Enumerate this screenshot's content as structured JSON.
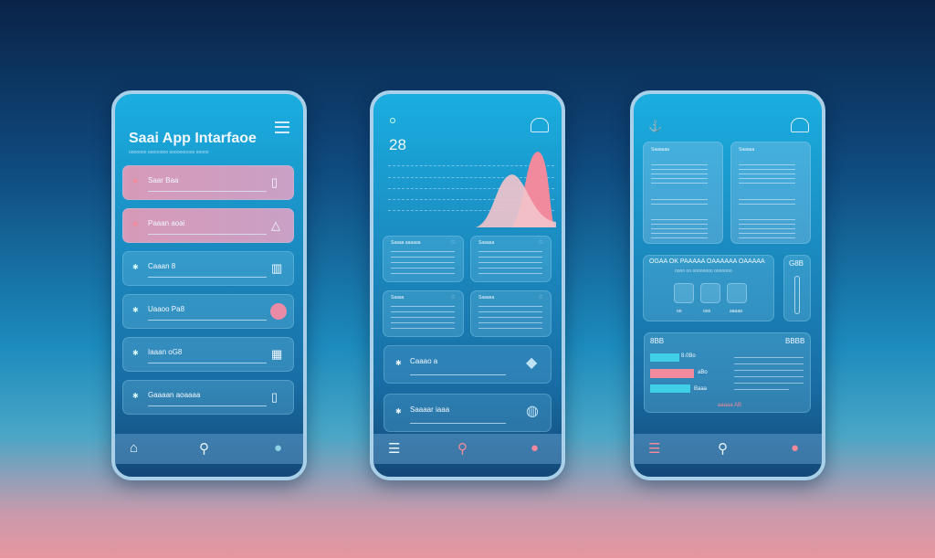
{
  "phone1": {
    "title": "Saai App Intarfaoe",
    "subtitle": "ooooooo oooooooo oooooooooo ooooo",
    "items": [
      {
        "label": "Saar Baa",
        "icon": "document-icon",
        "pink": true
      },
      {
        "label": "Paaan aoai",
        "icon": "triangle-icon",
        "pink": true
      },
      {
        "label": "Caaan 8",
        "icon": "chart-icon"
      },
      {
        "label": "Uaaoo Pa8",
        "icon": "circle-icon"
      },
      {
        "label": "Iaaan oG8",
        "icon": "calendar-icon"
      },
      {
        "label": "Gaaaan aoaaaa",
        "icon": "phone-icon"
      }
    ],
    "nav": [
      "gallery-icon",
      "search-icon",
      "avatar-icon"
    ]
  },
  "phone2": {
    "value": "28",
    "cards": [
      "Saaaa aaaaaa",
      "Saaaaa",
      "Saaaa",
      "Saaaaa"
    ],
    "items": [
      {
        "label": "Caaao a"
      },
      {
        "label": "Saaaar iaaa"
      }
    ],
    "nav": [
      "menu-icon",
      "search-icon",
      "avatar-icon"
    ]
  },
  "phone3": {
    "cards": [
      "Saaaaaa",
      "Saaaaa"
    ],
    "panel_title": "OGAA OK PAAAAA OAAAAAA OAAAAA",
    "panel_sub": "oooo oo oooooooo ooooooo",
    "tiles": [
      "oo",
      "ooo",
      "aaaaa"
    ],
    "side_title": "G8B",
    "chart_title": "8BB",
    "chart_badge": "BBBB",
    "bar_labels": [
      "8.0Bo",
      "aBo",
      "Baaa"
    ],
    "footer_link": "aaaaa AB",
    "nav": [
      "menu-icon",
      "search-icon",
      "avatar-icon"
    ]
  },
  "colors": {
    "accent_pink": "#f08a9c",
    "cyan": "#3fd0e8"
  }
}
